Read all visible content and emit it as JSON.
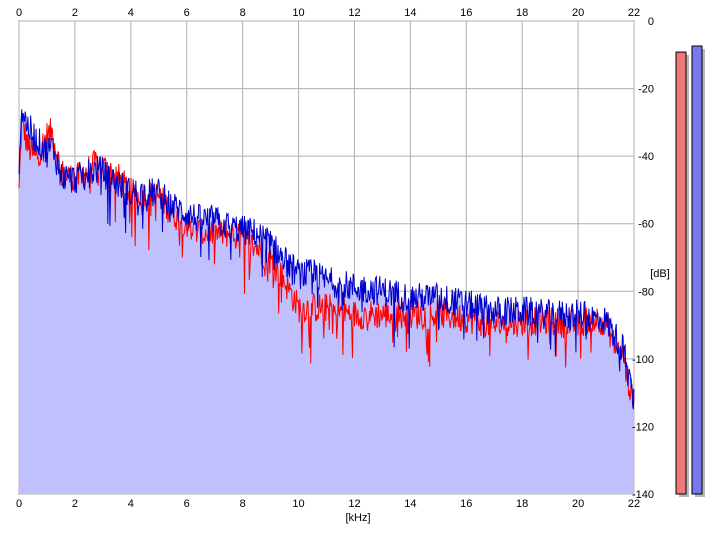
{
  "chart_data": {
    "type": "area",
    "xlabel": "[kHz]",
    "ylabel": "[dB]",
    "xlim": [
      0,
      22
    ],
    "ylim": [
      -140,
      0
    ],
    "x_ticks": [
      "0",
      "2",
      "4",
      "6",
      "8",
      "10",
      "12",
      "14",
      "16",
      "18",
      "20",
      "22"
    ],
    "y_ticks": [
      "0",
      "-20",
      "-40",
      "-60",
      "-80",
      "-100",
      "-120",
      "-140"
    ],
    "grid": true,
    "fill_color": "#c0c0ff",
    "series": [
      {
        "color": "#ff0000",
        "x": [
          0,
          0.1,
          0.3,
          0.6,
          1.0,
          1.2,
          1.5,
          2.0,
          2.5,
          2.8,
          3.0,
          3.5,
          4.0,
          4.5,
          5.0,
          5.5,
          6.0,
          6.5,
          7.0,
          7.5,
          8.0,
          8.5,
          9.0,
          9.5,
          10.0,
          10.5,
          11.0,
          12.0,
          13.0,
          14.0,
          15.0,
          16.0,
          17.0,
          18.0,
          19.0,
          20.0,
          20.5,
          21.0,
          21.3,
          21.6,
          21.8,
          22.0
        ],
        "y": [
          -50,
          -28,
          -36,
          -40,
          -33,
          -32,
          -44,
          -46,
          -43,
          -41,
          -42,
          -45,
          -50,
          -51,
          -51,
          -56,
          -59,
          -62,
          -62,
          -62,
          -64,
          -66,
          -70,
          -76,
          -84,
          -84,
          -84,
          -86,
          -86,
          -86,
          -86,
          -87,
          -89,
          -88,
          -88,
          -89,
          -87,
          -88,
          -95,
          -98,
          -106,
          -112
        ]
      },
      {
        "color": "#0000cc",
        "x": [
          0,
          0.1,
          0.3,
          0.6,
          1.0,
          1.2,
          1.5,
          2.0,
          2.5,
          2.8,
          3.0,
          3.5,
          4.0,
          4.5,
          5.0,
          5.5,
          6.0,
          6.5,
          7.0,
          7.5,
          8.0,
          8.5,
          9.0,
          9.5,
          10.0,
          10.5,
          11.0,
          12.0,
          13.0,
          14.0,
          15.0,
          16.0,
          17.0,
          18.0,
          19.0,
          20.0,
          20.5,
          21.0,
          21.3,
          21.6,
          21.8,
          22.0
        ],
        "y": [
          -40,
          -25,
          -30,
          -34,
          -38,
          -36,
          -45,
          -46,
          -44,
          -43,
          -44,
          -47,
          -50,
          -50,
          -50,
          -54,
          -56,
          -58,
          -58,
          -60,
          -61,
          -62,
          -65,
          -70,
          -74,
          -74,
          -76,
          -78,
          -79,
          -81,
          -81,
          -83,
          -85,
          -85,
          -86,
          -86,
          -87,
          -88,
          -92,
          -96,
          -104,
          -112
        ]
      }
    ],
    "level_bars": [
      {
        "color": "#f07878",
        "value": -9.2
      },
      {
        "color": "#7878f0",
        "value": -7.4
      }
    ]
  }
}
